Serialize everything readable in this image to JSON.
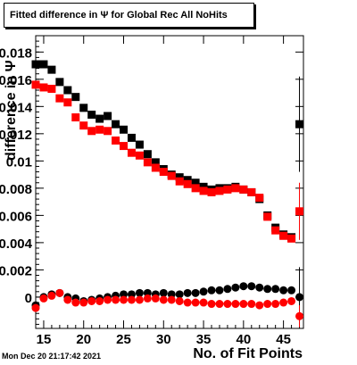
{
  "header": {
    "title": "Fitted difference in Ψ  for Global Rec All NoHits"
  },
  "footer": {
    "timestamp": "Mon Dec 20 21:17:42 2021"
  },
  "colors": {
    "series_black": "#000000",
    "series_red": "#ff0000"
  },
  "chart_data": {
    "type": "scatter",
    "title": "Fitted difference in Ψ  for Global Rec All NoHits",
    "xlabel": "No. of Fit Points",
    "ylabel": "difference in Ψ",
    "xlim": [
      14,
      47.5
    ],
    "ylim": [
      -0.0023,
      0.0192
    ],
    "x_ticks": [
      15,
      20,
      25,
      30,
      35,
      40,
      45
    ],
    "y_ticks": [
      0,
      0.002,
      0.004,
      0.006,
      0.008,
      0.01,
      0.012,
      0.014,
      0.016,
      0.018
    ],
    "y_tick_labels": [
      "0",
      "0.002",
      "0.004",
      "0.006",
      "0.008",
      "0.01",
      "0.012",
      "0.014",
      "0.016",
      "0.018"
    ],
    "x": [
      14,
      15,
      16,
      17,
      18,
      19,
      20,
      21,
      22,
      23,
      24,
      25,
      26,
      27,
      28,
      29,
      30,
      31,
      32,
      33,
      34,
      35,
      36,
      37,
      38,
      39,
      40,
      41,
      42,
      43,
      44,
      45,
      46,
      47
    ],
    "series": [
      {
        "marker": "square",
        "color": "#000000",
        "values": [
          0.0171,
          0.0171,
          0.0167,
          0.0158,
          0.0152,
          0.0147,
          0.0139,
          0.0134,
          0.0131,
          0.0133,
          0.0127,
          0.0123,
          0.0117,
          0.0112,
          0.0105,
          0.0099,
          0.0094,
          0.009,
          0.0088,
          0.0086,
          0.0084,
          0.0081,
          0.0079,
          0.008,
          0.008,
          0.0081,
          0.0079,
          0.0077,
          0.0072,
          0.006,
          0.0051,
          0.0046,
          0.0044,
          0.0127
        ],
        "errors": [
          0,
          0,
          0,
          0,
          0,
          0,
          0,
          0,
          0,
          0,
          0,
          0,
          0,
          0,
          0,
          0,
          0,
          0,
          0,
          0,
          0,
          0,
          0,
          0,
          0,
          0,
          0,
          0,
          0,
          0,
          0,
          0,
          0,
          0.0035
        ]
      },
      {
        "marker": "square",
        "color": "#ff0000",
        "values": [
          0.0156,
          0.0154,
          0.0153,
          0.0146,
          0.0143,
          0.0132,
          0.0126,
          0.0122,
          0.0123,
          0.0122,
          0.0115,
          0.0111,
          0.0106,
          0.0104,
          0.0099,
          0.0095,
          0.0092,
          0.0089,
          0.0085,
          0.0083,
          0.008,
          0.0078,
          0.0077,
          0.0078,
          0.0079,
          0.008,
          0.0079,
          0.0077,
          0.0073,
          0.0059,
          0.0049,
          0.0045,
          0.0043,
          0.0063
        ],
        "errors": [
          0,
          0,
          0,
          0,
          0,
          0,
          0,
          0,
          0,
          0,
          0,
          0,
          0,
          0,
          0,
          0,
          0,
          0,
          0,
          0,
          0,
          0,
          0,
          0,
          0,
          0,
          0,
          0,
          0,
          0,
          0,
          0,
          0,
          0.0021
        ]
      },
      {
        "marker": "circle",
        "color": "#000000",
        "values": [
          -0.0006,
          0.0,
          0.0002,
          0.0003,
          0.0,
          -0.0001,
          -0.0003,
          -0.0002,
          -0.0001,
          0.0,
          0.0001,
          0.0002,
          0.0002,
          0.0003,
          0.0003,
          0.0002,
          0.0003,
          0.0002,
          0.0002,
          0.0003,
          0.0003,
          0.0004,
          0.0005,
          0.0005,
          0.0006,
          0.0007,
          0.0008,
          0.0008,
          0.0007,
          0.0006,
          0.0006,
          0.0005,
          0.0005,
          0.0
        ],
        "errors": [
          0,
          0,
          0,
          0,
          0,
          0,
          0,
          0,
          0,
          0,
          0,
          0,
          0,
          0,
          0,
          0,
          0,
          0,
          0,
          0,
          0,
          0,
          0,
          0,
          0,
          0,
          0,
          0,
          0,
          0,
          0,
          0,
          0,
          0.0022
        ]
      },
      {
        "marker": "circle",
        "color": "#ff0000",
        "values": [
          -0.0008,
          -0.0001,
          0.0001,
          0.0003,
          -0.0002,
          -0.0004,
          -0.0004,
          -0.0003,
          -0.0003,
          -0.0002,
          -0.0002,
          -0.0002,
          -0.0002,
          -0.0002,
          -0.0001,
          -0.0001,
          -0.0002,
          -0.0002,
          -0.0003,
          -0.0004,
          -0.0004,
          -0.0004,
          -0.0005,
          -0.0005,
          -0.0005,
          -0.0005,
          -0.0005,
          -0.0005,
          -0.0006,
          -0.0005,
          -0.0005,
          -0.0004,
          -0.0003,
          -0.0014
        ],
        "errors": [
          0,
          0,
          0,
          0,
          0,
          0,
          0,
          0,
          0,
          0,
          0,
          0,
          0,
          0,
          0,
          0,
          0,
          0,
          0,
          0,
          0,
          0,
          0,
          0,
          0,
          0,
          0,
          0,
          0,
          0,
          0,
          0,
          0,
          0.0008
        ]
      }
    ]
  }
}
